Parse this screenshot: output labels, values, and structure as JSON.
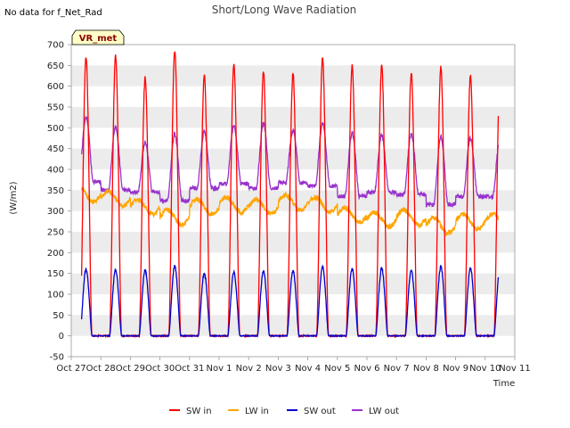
{
  "header": {
    "no_data_text": "No data for f_Net_Rad",
    "badge_text": "VR_met"
  },
  "chart_data": {
    "type": "line",
    "title": "Short/Long Wave Radiation",
    "xlabel": "Time",
    "ylabel": "(W/m2)",
    "ylim": [
      -50,
      700
    ],
    "yticks": [
      -50,
      0,
      50,
      100,
      150,
      200,
      250,
      300,
      350,
      400,
      450,
      500,
      550,
      600,
      650,
      700
    ],
    "xlim_days": [
      0,
      15
    ],
    "x_unit": "days since Oct 27 00:00",
    "x_tick_labels": [
      "Oct 27",
      "Oct 28",
      "Oct 29",
      "Oct 30",
      "Oct 31",
      "Nov 1",
      "Nov 2",
      "Nov 3",
      "Nov 4",
      "Nov 5",
      "Nov 6",
      "Nov 7",
      "Nov 8",
      "Nov 9",
      "Nov 10",
      "Nov 11"
    ],
    "data_range_days": [
      0.35,
      14.45
    ],
    "daily_peaks": {
      "SW_in": [
        670,
        672,
        620,
        685,
        625,
        650,
        635,
        630,
        668,
        648,
        648,
        632,
        645,
        625
      ],
      "SW_out": [
        160,
        160,
        158,
        168,
        150,
        152,
        155,
        155,
        165,
        162,
        163,
        158,
        167,
        162
      ],
      "LW_in_level": [
        340,
        330,
        310,
        285,
        310,
        315,
        310,
        320,
        315,
        290,
        280,
        285,
        265,
        275
      ],
      "LW_out_peak": [
        527,
        500,
        465,
        485,
        490,
        505,
        510,
        493,
        510,
        487,
        483,
        485,
        478,
        475
      ],
      "LW_out_night": [
        370,
        350,
        345,
        325,
        355,
        365,
        355,
        368,
        360,
        335,
        345,
        340,
        315,
        335
      ]
    },
    "series": [
      {
        "name": "SW in",
        "color": "#ff0000"
      },
      {
        "name": "LW in",
        "color": "#ffa500"
      },
      {
        "name": "SW out",
        "color": "#0000cd"
      },
      {
        "name": "LW out",
        "color": "#9932cc"
      }
    ],
    "legend_position": "bottom-center"
  }
}
